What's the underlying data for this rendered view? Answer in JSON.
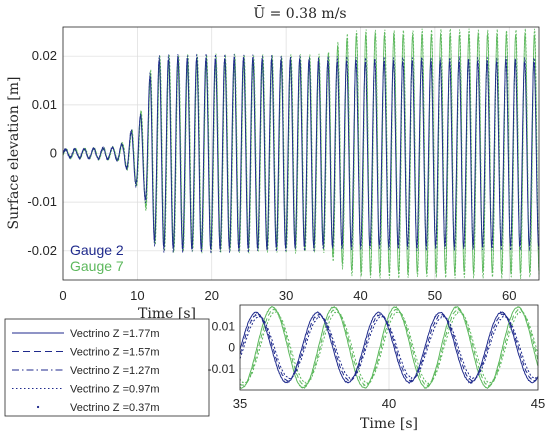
{
  "chart_data": [
    {
      "type": "line",
      "title": "Ū = 0.38 m/s",
      "xlabel": "Time [s]",
      "ylabel": "Surface elevation [m]",
      "xlim": [
        0,
        64
      ],
      "ylim": [
        -0.026,
        0.026
      ],
      "xticks": [
        "0",
        "10",
        "20",
        "30",
        "40",
        "50",
        "60"
      ],
      "yticks": [
        "0.02",
        "0.01",
        "0",
        "-0.01",
        "-0.02"
      ],
      "ytick_values": [
        0.02,
        0.01,
        0,
        -0.01,
        -0.02
      ],
      "xtick_values": [
        0,
        10,
        20,
        30,
        40,
        50,
        60
      ],
      "grid": true,
      "legend_position": "bottom-left",
      "series": [
        {
          "name": "Gauge 2",
          "color": "#1f2a8c",
          "envelope": {
            "t": [
              0,
              7,
              8,
              9,
              10,
              11,
              11.8,
              13,
              25,
              35,
              38.5,
              40,
              45,
              50,
              55,
              60,
              64
            ],
            "amplitude": [
              0.0008,
              0.0012,
              0.002,
              0.004,
              0.007,
              0.009,
              0.017,
              0.0195,
              0.0195,
              0.019,
              0.019,
              0.019,
              0.019,
              0.019,
              0.019,
              0.019,
              0.019
            ]
          },
          "wave_period_s": 1.26,
          "phase_s": 0.0
        },
        {
          "name": "Gauge 7",
          "color": "#5cb85c",
          "envelope": {
            "t": [
              0,
              7,
              8,
              9,
              10,
              11,
              11.8,
              13,
              25,
              35,
              38.5,
              40,
              45,
              50,
              55,
              60,
              64
            ],
            "amplitude": [
              0.0008,
              0.0012,
              0.002,
              0.004,
              0.007,
              0.01,
              0.017,
              0.0195,
              0.0195,
              0.0195,
              0.024,
              0.0245,
              0.0245,
              0.0245,
              0.0245,
              0.0245,
              0.0245
            ]
          },
          "wave_period_s": 1.26,
          "phase_s": 0.07
        }
      ]
    },
    {
      "type": "line",
      "xlabel": "Time [s]",
      "xlim": [
        35,
        45
      ],
      "ylim": [
        -0.02,
        0.02
      ],
      "xticks": [
        "35",
        "40",
        "45"
      ],
      "xtick_values": [
        35,
        40,
        45
      ],
      "yticks": [
        "0.01",
        "0",
        "-0.01"
      ],
      "ytick_values": [
        0.01,
        0,
        -0.01
      ],
      "grid": true,
      "series": [
        {
          "name": "Gauge 2",
          "color": "#1f2a8c",
          "amplitude": 0.0165,
          "wave_period_s": 2.06,
          "phase_s": 0.0
        },
        {
          "name": "Gauge 7",
          "color": "#5cb85c",
          "amplitude": 0.019,
          "wave_period_s": 2.06,
          "phase_s": 0.55
        }
      ]
    }
  ],
  "legend_main": [
    {
      "label": "Gauge 2",
      "color": "#1f2a8c"
    },
    {
      "label": "Gauge 7",
      "color": "#5cb85c"
    }
  ],
  "legend_lines": [
    {
      "label": "Vectrino Z =1.77m",
      "dash": "solid"
    },
    {
      "label": "Vectrino Z =1.57m",
      "dash": "dashed"
    },
    {
      "label": "Vectrino Z =1.27m",
      "dash": "dashdot"
    },
    {
      "label": "Vectrino Z =0.97m",
      "dash": "dotted"
    },
    {
      "label": "Vectrino Z =0.37m",
      "dash": "point"
    }
  ]
}
